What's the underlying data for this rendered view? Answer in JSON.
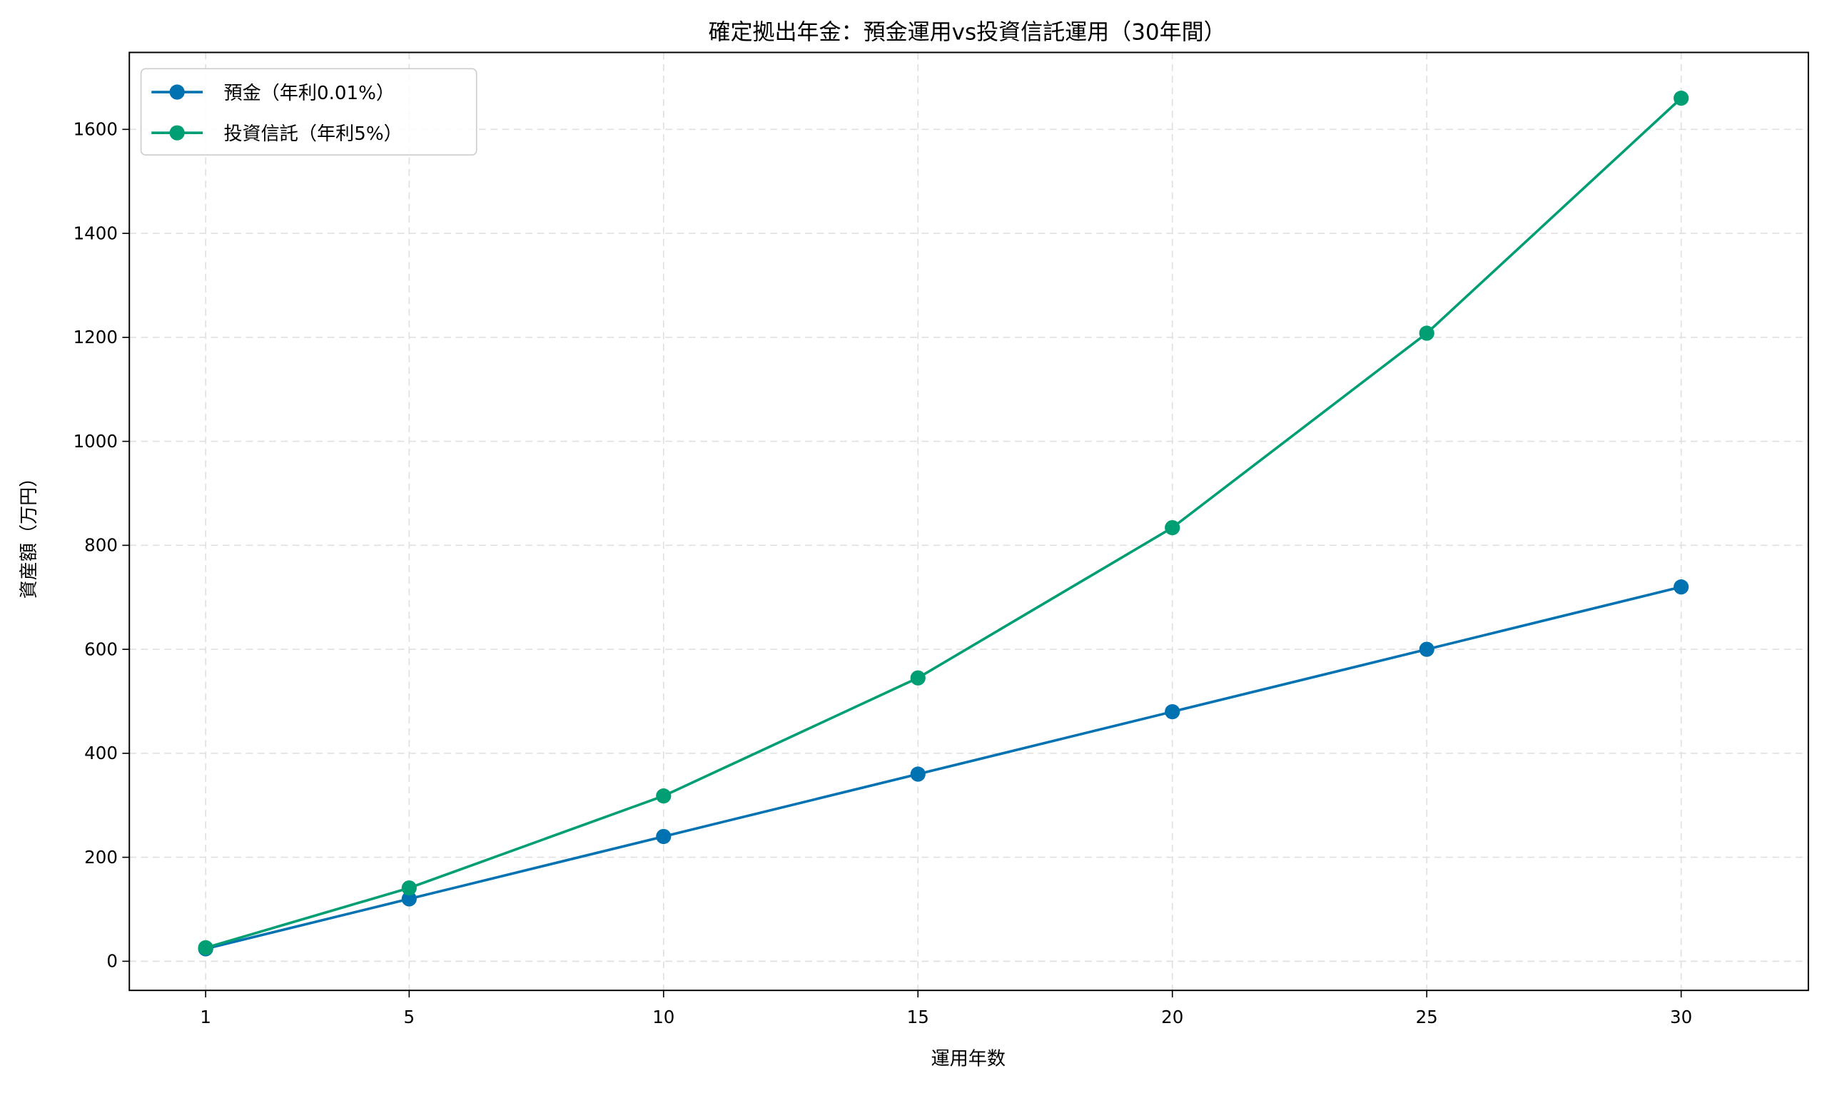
{
  "chart_data": {
    "type": "line",
    "title": "確定拠出年金：預金運用vs投資信託運用（30年間）",
    "xlabel": "運用年数",
    "ylabel": "資産額（万円）",
    "x": [
      1,
      5,
      10,
      15,
      20,
      25,
      30
    ],
    "x_ticks": [
      "1",
      "5",
      "10",
      "15",
      "20",
      "25",
      "30"
    ],
    "y_ticks": [
      "0",
      "200",
      "400",
      "600",
      "800",
      "1000",
      "1200",
      "1400",
      "1600"
    ],
    "ylim": [
      -56,
      1748
    ],
    "xlim": [
      -0.5,
      32.5
    ],
    "grid": true,
    "legend_position": "upper left",
    "series": [
      {
        "name": "預金（年利0.01%）",
        "color": "#0072B2",
        "values": [
          24,
          120,
          240,
          360,
          480,
          600,
          720
        ]
      },
      {
        "name": "投資信託（年利5%）",
        "color": "#009E73",
        "values": [
          26,
          141,
          318,
          545,
          834,
          1208,
          1660
        ]
      }
    ]
  }
}
